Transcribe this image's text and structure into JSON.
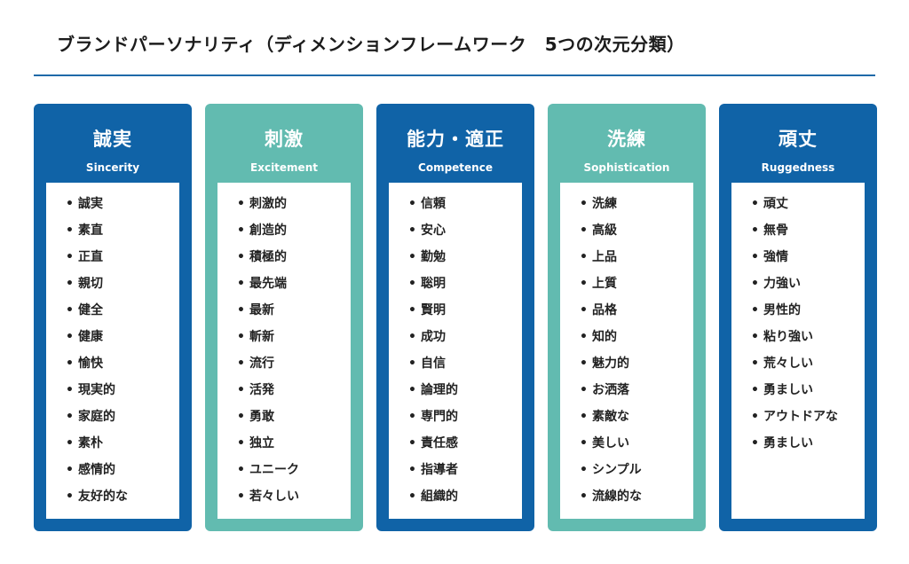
{
  "title": "ブランドパーソナリティ（ディメンションフレームワーク　5つの次元分類）",
  "columns": [
    {
      "title": "誠実",
      "subtitle": "Sincerity",
      "items": [
        "誠実",
        "素直",
        "正直",
        "親切",
        "健全",
        "健康",
        "愉快",
        "現実的",
        "家庭的",
        "素朴",
        "感情的",
        "友好的な"
      ]
    },
    {
      "title": "刺激",
      "subtitle": "Excitement",
      "items": [
        "刺激的",
        "創造的",
        "積極的",
        "最先端",
        "最新",
        "斬新",
        "流行",
        "活発",
        "勇敢",
        "独立",
        "ユニーク",
        "若々しい"
      ]
    },
    {
      "title": "能力・適正",
      "subtitle": "Competence",
      "items": [
        "信頼",
        "安心",
        "勤勉",
        "聡明",
        "賢明",
        "成功",
        "自信",
        "論理的",
        "専門的",
        "責任感",
        "指導者",
        "組織的"
      ]
    },
    {
      "title": "洗練",
      "subtitle": "Sophistication",
      "items": [
        "洗練",
        "高級",
        "上品",
        "上質",
        "品格",
        "知的",
        "魅力的",
        "お洒落",
        "素敵な",
        "美しい",
        "シンプル",
        "流線的な"
      ]
    },
    {
      "title": "頑丈",
      "subtitle": "Ruggedness",
      "items": [
        "頑丈",
        "無骨",
        "強情",
        "力強い",
        "男性的",
        "粘り強い",
        "荒々しい",
        "勇ましい",
        "アウトドアな",
        "勇ましい"
      ]
    }
  ],
  "colors": {
    "blue": "#1063a7",
    "teal": "#62bbb0",
    "rule": "#1e6aa8"
  }
}
